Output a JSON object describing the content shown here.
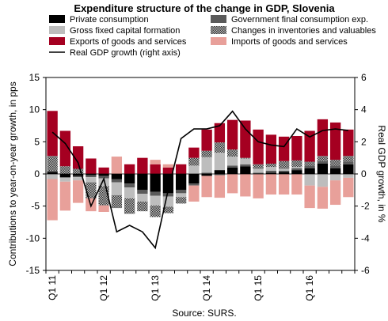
{
  "chart_data": {
    "type": "bar",
    "title": "Expenditure structure of the change in GDP, Slovenia",
    "ylabel": "Contributions to year-on-year growth, in pps",
    "y2label": "Real GDP growth, in %",
    "source": "Source: SURS.",
    "ylim": [
      -15,
      15
    ],
    "yticks": [
      -15,
      -10,
      -5,
      0,
      5,
      10,
      15
    ],
    "y2lim": [
      -6,
      6
    ],
    "y2ticks": [
      -6,
      -4,
      -2,
      0,
      2,
      4,
      6
    ],
    "x": [
      "Q1 11",
      "Q2 11",
      "Q3 11",
      "Q4 11",
      "Q1 12",
      "Q2 12",
      "Q3 12",
      "Q4 12",
      "Q1 13",
      "Q2 13",
      "Q3 13",
      "Q4 13",
      "Q1 14",
      "Q2 14",
      "Q3 14",
      "Q4 14",
      "Q1 15",
      "Q2 15",
      "Q3 15",
      "Q4 15",
      "Q1 16",
      "Q2 16",
      "Q3 16",
      "Q4 16"
    ],
    "xtick_labels": [
      {
        "index": 0,
        "label": "Q1 11"
      },
      {
        "index": 4,
        "label": "Q1 12"
      },
      {
        "index": 8,
        "label": "Q1 13"
      },
      {
        "index": 12,
        "label": "Q1 14"
      },
      {
        "index": 16,
        "label": "Q1 15"
      },
      {
        "index": 20,
        "label": "Q1 16"
      }
    ],
    "legend_position": "top, two columns",
    "series": [
      {
        "name": "Private consumption",
        "kind": "bar",
        "color": "#000000",
        "pattern": "solid",
        "values": [
          0.3,
          -0.5,
          -0.3,
          -0.2,
          -0.3,
          -0.8,
          -1.5,
          -2.5,
          -2.8,
          -3.0,
          -2.5,
          -1.5,
          -0.3,
          0.6,
          1.0,
          1.2,
          0.1,
          0.2,
          0.3,
          0.6,
          0.9,
          1.6,
          0.9,
          1.5
        ]
      },
      {
        "name": "Government final consumption exp.",
        "kind": "bar",
        "color": "#5a5a5a",
        "pattern": "solid",
        "values": [
          0.2,
          -0.1,
          -0.2,
          -0.3,
          -0.4,
          -0.5,
          -0.6,
          -0.6,
          -0.6,
          -0.5,
          -0.5,
          -0.3,
          0.2,
          -0.2,
          0.3,
          0.3,
          0.1,
          0.3,
          0.2,
          0.3,
          0.4,
          0.4,
          0.4,
          0.4
        ]
      },
      {
        "name": "Gross fixed capital formation",
        "kind": "bar",
        "color": "#bdbdbd",
        "pattern": "solid",
        "values": [
          -0.8,
          -0.6,
          -0.5,
          -0.8,
          -1.2,
          -2.0,
          -1.7,
          -1.2,
          -1.5,
          -1.6,
          -0.6,
          1.3,
          2.4,
          2.7,
          1.4,
          0.9,
          0.6,
          0.6,
          0.3,
          0.2,
          -1.8,
          -2.0,
          -1.0,
          -0.6
        ]
      },
      {
        "name": "Changes in inventories and valuables",
        "kind": "bar",
        "color": "#3a3a3a",
        "pattern": "checker",
        "values": [
          2.3,
          1.2,
          0.8,
          -2.5,
          -3.0,
          -2.0,
          -2.4,
          -1.5,
          -1.8,
          -1.0,
          -1.0,
          1.2,
          1.0,
          1.6,
          1.1,
          0.1,
          0.7,
          0.5,
          1.2,
          1.0,
          0.6,
          0.8,
          0.9,
          0.9
        ]
      },
      {
        "name": "Exports of goods and services",
        "kind": "bar",
        "color": "#a50021",
        "pattern": "solid",
        "values": [
          7.0,
          5.5,
          3.5,
          2.4,
          1.0,
          0.0,
          1.5,
          2.5,
          1.5,
          1.0,
          1.5,
          1.6,
          3.3,
          3.0,
          4.6,
          5.8,
          5.4,
          4.5,
          3.8,
          3.8,
          4.8,
          5.7,
          5.8,
          4.1
        ]
      },
      {
        "name": "Imports of goods and services",
        "kind": "bar",
        "color": "#e8a09a",
        "pattern": "solid",
        "values": [
          -6.4,
          -4.5,
          -3.5,
          -2.0,
          -1.0,
          2.7,
          0.0,
          0.0,
          0.7,
          0.5,
          0.0,
          -2.5,
          -3.3,
          -3.5,
          -3.0,
          -3.5,
          -3.8,
          -3.2,
          -3.2,
          -3.2,
          -3.5,
          -3.4,
          -3.8,
          -3.0
        ]
      },
      {
        "name": "Real GDP growth (right axis)",
        "kind": "line",
        "axis": "right",
        "color": "#000000",
        "values": [
          2.6,
          1.9,
          0.7,
          -2.0,
          -0.3,
          -3.6,
          -3.2,
          -3.6,
          -4.6,
          -1.0,
          2.2,
          2.8,
          2.8,
          3.0,
          3.9,
          2.8,
          2.0,
          1.8,
          1.7,
          2.8,
          2.3,
          2.7,
          2.8,
          2.7
        ]
      }
    ]
  }
}
